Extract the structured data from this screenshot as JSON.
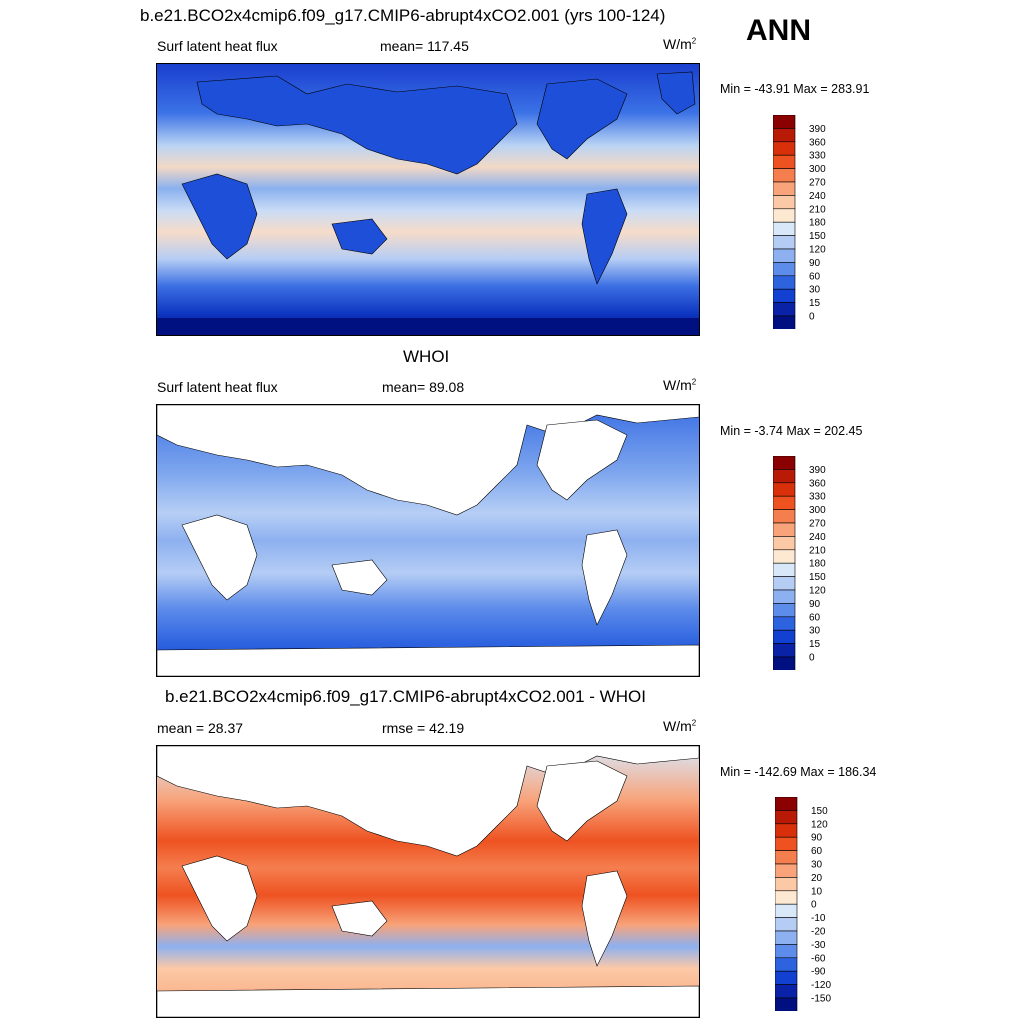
{
  "case_title": "b.e21.BCO2x4cmip6.f09_g17.CMIP6-abrupt4xCO2.001 (yrs 100-124)",
  "season": "ANN",
  "panels": [
    {
      "id": "model",
      "title": "b.e21.BCO2x4cmip6.f09_g17.CMIP6-abrupt4xCO2.001 (yrs 100-124)",
      "left_label": "Surf latent heat flux",
      "center_label": "mean= 117.45",
      "units_base": "W/m",
      "units_exp": "2",
      "minmax": "Min = -43.91 Max = 283.91"
    },
    {
      "id": "obs",
      "title": "WHOI",
      "left_label": "Surf latent heat flux",
      "center_label": "mean=  89.08",
      "units_base": "W/m",
      "units_exp": "2",
      "minmax": "Min =  -3.74 Max = 202.45"
    },
    {
      "id": "diff",
      "title": "b.e21.BCO2x4cmip6.f09_g17.CMIP6-abrupt4xCO2.001 - WHOI",
      "left_label": "mean =  28.37",
      "center_label": "rmse =  42.19",
      "units_base": "W/m",
      "units_exp": "2",
      "minmax": "Min = -142.69 Max = 186.34"
    }
  ],
  "colorbars": {
    "flux": {
      "labels": [
        "390",
        "360",
        "330",
        "300",
        "270",
        "240",
        "210",
        "180",
        "150",
        "120",
        "90",
        "60",
        "30",
        "15",
        "0"
      ],
      "colors": [
        "#8b0000",
        "#b81a05",
        "#d7300b",
        "#ee5221",
        "#f57e4f",
        "#f8a37a",
        "#fcc9a6",
        "#fde8d2",
        "#d8e8f9",
        "#b5cdf5",
        "#8db0f0",
        "#5d8cea",
        "#2e63e0",
        "#1240d0",
        "#0a22a8",
        "#001080"
      ]
    },
    "diff": {
      "labels": [
        "150",
        "120",
        "90",
        "60",
        "30",
        "20",
        "10",
        "0",
        "-10",
        "-20",
        "-30",
        "-60",
        "-90",
        "-120",
        "-150"
      ],
      "colors": [
        "#8b0000",
        "#b81a05",
        "#d7300b",
        "#ee5221",
        "#f57e4f",
        "#f8a37a",
        "#fcc9a6",
        "#fde8d2",
        "#d8e8f9",
        "#b5cdf5",
        "#8db0f0",
        "#5d8cea",
        "#2e63e0",
        "#1240d0",
        "#0a22a8",
        "#001080"
      ]
    }
  }
}
